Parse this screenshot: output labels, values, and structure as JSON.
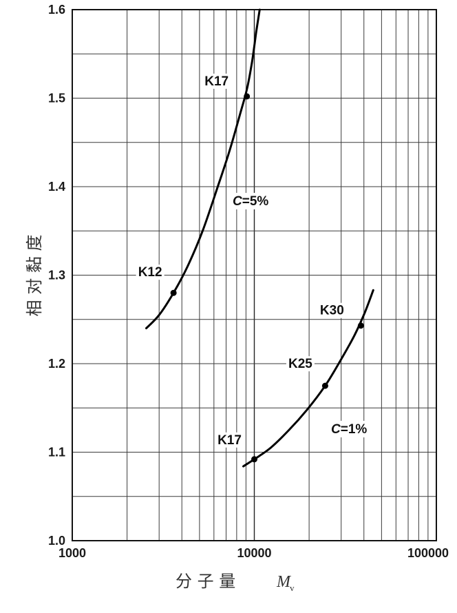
{
  "chart_data": {
    "type": "line",
    "title": "",
    "xlabel": "分 子 量",
    "xlabel_var": "M",
    "xlabel_sub": "v",
    "ylabel": "相 对 黏 度",
    "xscale": "log",
    "xlim": [
      1000,
      100000
    ],
    "ylim": [
      1.0,
      1.6
    ],
    "grid": true,
    "xticks": [
      1000,
      10000,
      100000
    ],
    "xtick_labels": [
      "1000",
      "10000",
      "100000"
    ],
    "yticks": [
      1.0,
      1.1,
      1.2,
      1.3,
      1.4,
      1.5,
      1.6
    ],
    "ytick_labels": [
      "1.0",
      "1.1",
      "1.2",
      "1.3",
      "1.4",
      "1.5",
      "1.6"
    ],
    "series": [
      {
        "name": "C=5%",
        "name_var": "C",
        "name_rest": "=5%",
        "x": [
          2550,
          3000,
          3600,
          4300,
          5200,
          6300,
          7300,
          8300,
          9100,
          9700,
          10250,
          10700
        ],
        "y": [
          1.24,
          1.255,
          1.28,
          1.31,
          1.35,
          1.4,
          1.44,
          1.48,
          1.51,
          1.54,
          1.575,
          1.6
        ],
        "points": [
          {
            "label": "K12",
            "x": 3600,
            "y": 1.28
          },
          {
            "label": "K17",
            "x": 9100,
            "y": 1.502
          }
        ]
      },
      {
        "name": "C=1%",
        "name_var": "C",
        "name_rest": "=1%",
        "x": [
          8700,
          10000,
          12300,
          15500,
          19500,
          24500,
          30000,
          35500,
          40500,
          45000
        ],
        "y": [
          1.084,
          1.092,
          1.105,
          1.125,
          1.148,
          1.175,
          1.205,
          1.232,
          1.258,
          1.283
        ],
        "points": [
          {
            "label": "K17",
            "x": 10000,
            "y": 1.092
          },
          {
            "label": "K25",
            "x": 24500,
            "y": 1.175
          },
          {
            "label": "K30",
            "x": 38500,
            "y": 1.243
          }
        ]
      }
    ]
  }
}
